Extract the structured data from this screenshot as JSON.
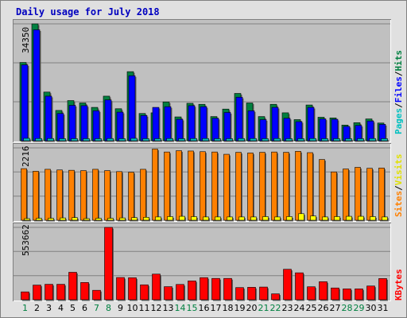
{
  "title": "Daily usage for July 2018",
  "colors": {
    "pages": "#00c0c0",
    "files": "#0000ff",
    "hits": "#008040",
    "sites": "#ff8000",
    "visits": "#ffff00",
    "kbytes": "#ff0000",
    "weekday_label": "#000000",
    "weekend_label": "#008040",
    "title": "#0000c0"
  },
  "hits_panel": {
    "ymax_label": "34350",
    "legend": {
      "pages": "Pages",
      "files": "Files",
      "hits": "Hits",
      "sep": "/"
    }
  },
  "sites_panel": {
    "ymax_label": "2216",
    "legend": {
      "sites": "Sites",
      "visits": "Visits",
      "sep": "/"
    }
  },
  "kbytes_panel": {
    "ymax_label": "553662",
    "legend": {
      "kbytes": "KBytes"
    }
  },
  "chart_data": {
    "type": "bar",
    "title": "Daily usage for July 2018",
    "categories": [
      "1",
      "2",
      "3",
      "4",
      "5",
      "6",
      "7",
      "8",
      "9",
      "10",
      "11",
      "12",
      "13",
      "14",
      "15",
      "16",
      "17",
      "18",
      "19",
      "20",
      "21",
      "22",
      "23",
      "24",
      "25",
      "26",
      "27",
      "28",
      "29",
      "30",
      "31"
    ],
    "weekend_days": [
      "1",
      "7",
      "8",
      "14",
      "15",
      "21",
      "22",
      "28",
      "29"
    ],
    "panels": [
      {
        "name": "hits",
        "ylim": [
          0,
          34350
        ],
        "series": [
          {
            "name": "Hits",
            "values": [
              23000,
              34350,
              14300,
              8900,
              11800,
              11100,
              9800,
              13100,
              9400,
              20300,
              8000,
              8200,
              11400,
              7000,
              11000,
              10700,
              7100,
              9300,
              13900,
              11100,
              7100,
              10700,
              8200,
              6200,
              10500,
              6900,
              6700,
              4600,
              5300,
              6400,
              5200
            ]
          },
          {
            "name": "Files",
            "values": [
              22300,
              32600,
              13100,
              8000,
              10400,
              10300,
              8800,
              12000,
              8400,
              19100,
              7400,
              9800,
              10000,
              6300,
              10300,
              10000,
              6600,
              8300,
              12800,
              8800,
              6200,
              9800,
              6600,
              5600,
              9800,
              6400,
              6300,
              4200,
              4500,
              5800,
              4800
            ]
          },
          {
            "name": "Pages",
            "values": [
              700,
              650,
              650,
              600,
              600,
              600,
              600,
              650,
              600,
              700,
              600,
              600,
              650,
              600,
              650,
              650,
              600,
              600,
              650,
              650,
              600,
              650,
              600,
              600,
              650,
              600,
              600,
              600,
              600,
              650,
              600
            ]
          }
        ]
      },
      {
        "name": "sites",
        "ylim": [
          0,
          2216
        ],
        "series": [
          {
            "name": "Sites",
            "values": [
              1580,
              1500,
              1560,
              1540,
              1530,
              1520,
              1560,
              1520,
              1490,
              1470,
              1560,
              2180,
              2090,
              2130,
              2120,
              2100,
              2090,
              2020,
              2080,
              2060,
              2080,
              2090,
              2080,
              2110,
              2070,
              1860,
              1480,
              1570,
              1620,
              1590,
              1600
            ]
          },
          {
            "name": "Visits",
            "values": [
              50,
              60,
              60,
              70,
              80,
              50,
              60,
              60,
              70,
              80,
              90,
              100,
              110,
              120,
              110,
              100,
              100,
              100,
              100,
              100,
              110,
              100,
              110,
              200,
              130,
              100,
              110,
              120,
              120,
              110,
              100
            ]
          }
        ]
      },
      {
        "name": "kbytes",
        "ylim": [
          0,
          553662
        ],
        "series": [
          {
            "name": "KBytes",
            "values": [
              60000,
              112000,
              118000,
              118000,
              210000,
              132000,
              72000,
              553662,
              170000,
              168000,
              114000,
              196000,
              100000,
              117000,
              144000,
              169000,
              163000,
              163000,
              93000,
              95000,
              97000,
              45000,
              233000,
              206000,
              99000,
              138000,
              90000,
              83000,
              83000,
              105000,
              162000
            ]
          }
        ]
      }
    ]
  }
}
